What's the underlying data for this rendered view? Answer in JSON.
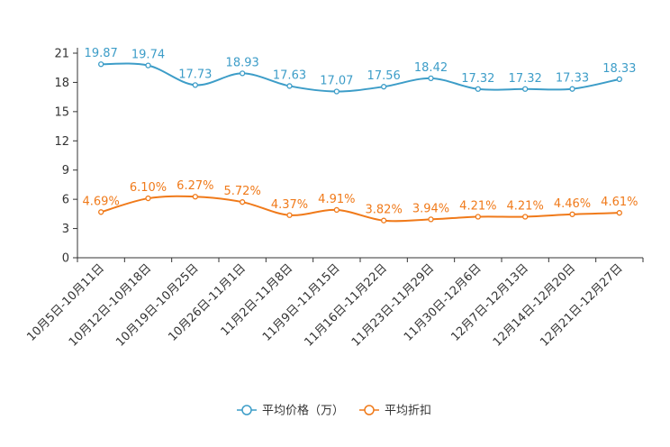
{
  "chart_data": {
    "type": "line",
    "title": "",
    "xlabel": "",
    "ylabel": "",
    "ylim": [
      0,
      21
    ],
    "yticks": [
      0,
      3,
      6,
      9,
      12,
      15,
      18,
      21
    ],
    "grid": false,
    "legend_position": "bottom",
    "categories": [
      "10月5日-10月11日",
      "10月12日-10月18日",
      "10月19日-10月25日",
      "10月26日-11月1日",
      "11月2日-11月8日",
      "11月9日-11月15日",
      "11月16日-11月22日",
      "11月23日-11月29日",
      "11月30日-12月6日",
      "12月7日-12月13日",
      "12月14日-12月20日",
      "12月21日-12月27日"
    ],
    "series": [
      {
        "name": "平均价格（万）",
        "color": "#3d9dc8",
        "values": [
          19.87,
          19.74,
          17.73,
          18.93,
          17.63,
          17.07,
          17.56,
          18.42,
          17.32,
          17.32,
          17.33,
          18.33
        ],
        "labels": [
          "19.87",
          "19.74",
          "17.73",
          "18.93",
          "17.63",
          "17.07",
          "17.56",
          "18.42",
          "17.32",
          "17.32",
          "17.33",
          "18.33"
        ]
      },
      {
        "name": "平均折扣",
        "color": "#f07a1a",
        "values": [
          4.69,
          6.1,
          6.27,
          5.72,
          4.37,
          4.91,
          3.82,
          3.94,
          4.21,
          4.21,
          4.46,
          4.61
        ],
        "labels": [
          "4.69%",
          "6.10%",
          "6.27%",
          "5.72%",
          "4.37%",
          "4.91%",
          "3.82%",
          "3.94%",
          "4.21%",
          "4.21%",
          "4.46%",
          "4.61%"
        ]
      }
    ]
  }
}
